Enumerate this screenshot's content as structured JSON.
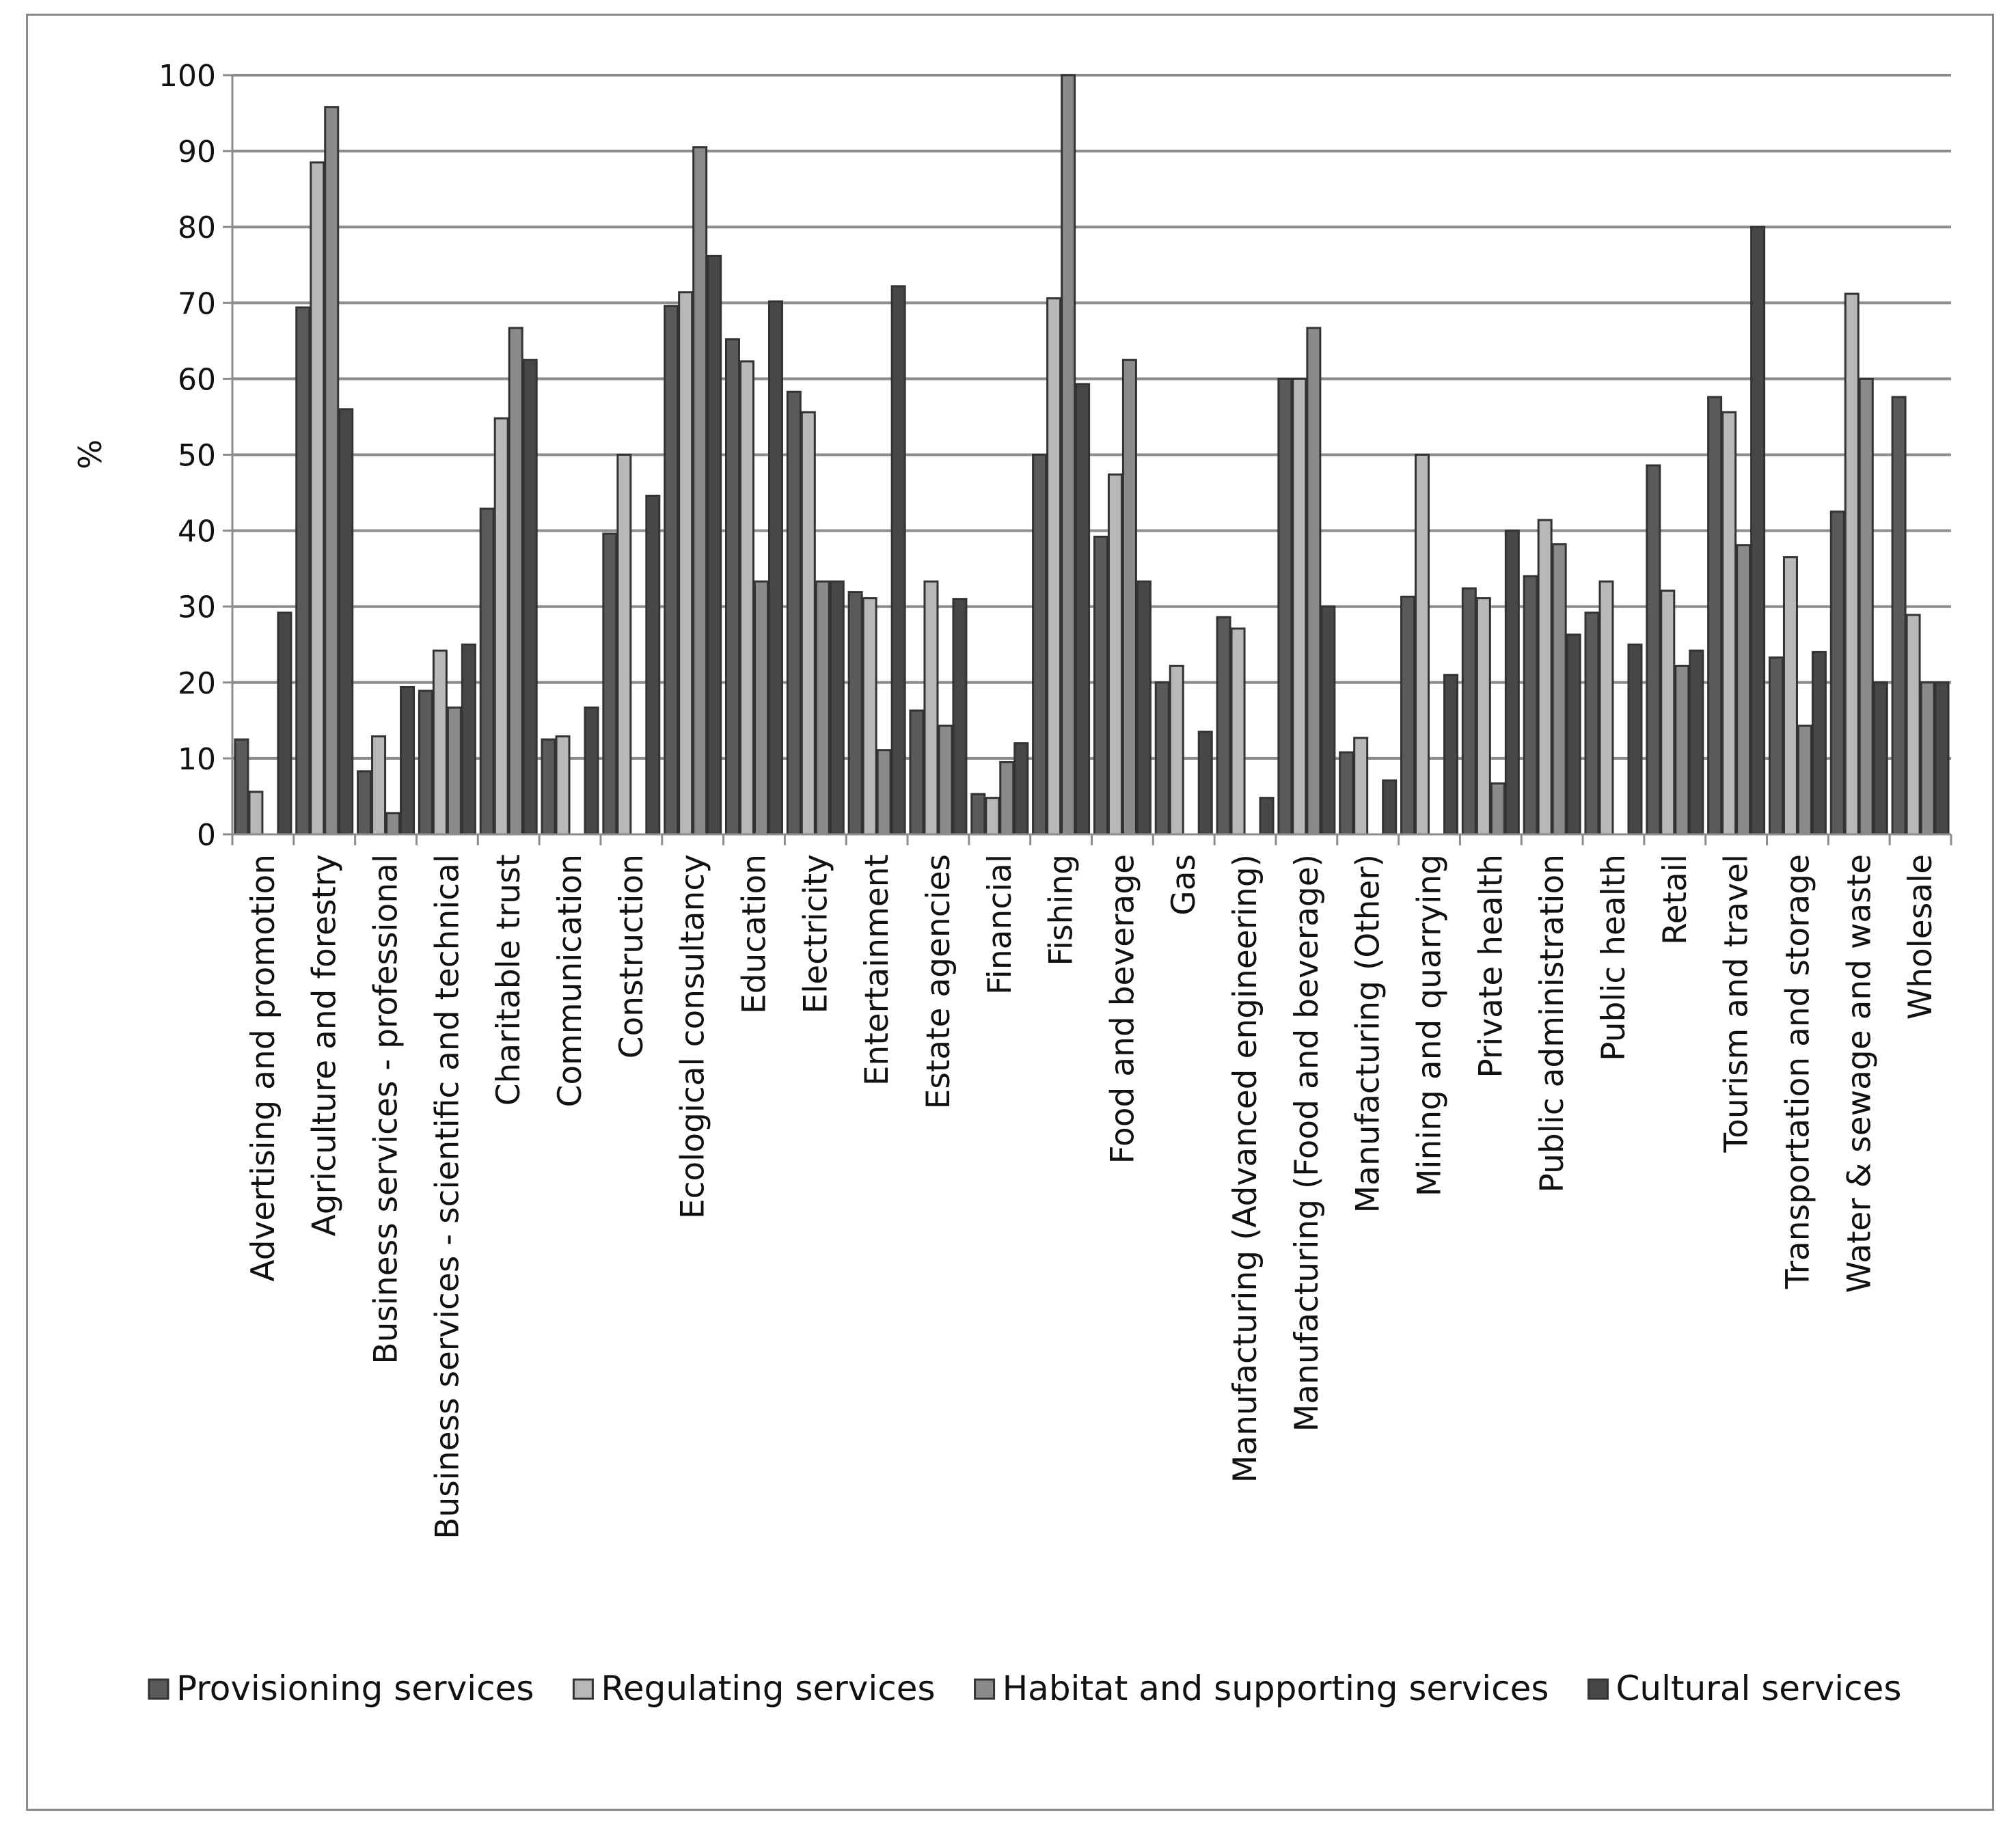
{
  "chart_data": {
    "type": "bar",
    "title": "",
    "xlabel": "",
    "ylabel": "%",
    "ylim": [
      0,
      100
    ],
    "yticks": [
      0,
      10,
      20,
      30,
      40,
      50,
      60,
      70,
      80,
      90,
      100
    ],
    "grid": true,
    "legend_position": "bottom",
    "categories": [
      "Advertising and promotion",
      "Agriculture and forestry",
      "Business services - professional",
      "Business services - scientific and technical",
      "Charitable trust",
      "Communication",
      "Construction",
      "Ecological consultancy",
      "Education",
      "Electricity",
      "Entertainment",
      "Estate agencies",
      "Financial",
      "Fishing",
      "Food and beverage",
      "Gas",
      "Manufacturing (Advanced engineering)",
      "Manufacturing (Food and beverage)",
      "Manufacturing (Other)",
      "Mining and quarrying",
      "Private health",
      "Public administration",
      "Public health",
      "Retail",
      "Tourism and travel",
      "Transportation and storage",
      "Water & sewage and waste",
      "Wholesale"
    ],
    "series": [
      {
        "name": "Provisioning services",
        "color": "#5a5a5a",
        "values": [
          12.5,
          69.4,
          8.3,
          18.9,
          42.9,
          12.5,
          39.6,
          69.6,
          65.2,
          58.3,
          31.9,
          16.3,
          5.3,
          50,
          39.2,
          20,
          28.6,
          60,
          10.8,
          31.3,
          32.4,
          34,
          29.2,
          48.6,
          57.6,
          23.3,
          42.5,
          57.6
        ]
      },
      {
        "name": "Regulating services",
        "color": "#b8b8b8",
        "values": [
          5.6,
          88.5,
          12.9,
          24.2,
          54.8,
          12.9,
          50,
          71.4,
          62.3,
          55.6,
          31.1,
          33.3,
          4.8,
          70.6,
          47.4,
          22.2,
          27.1,
          60,
          12.7,
          50,
          31.1,
          41.4,
          33.3,
          32.1,
          55.6,
          36.5,
          71.2,
          28.9
        ]
      },
      {
        "name": "Habitat and supporting services",
        "color": "#8a8a8a",
        "values": [
          0,
          95.8,
          2.8,
          16.7,
          66.7,
          0,
          0,
          90.5,
          33.3,
          33.3,
          11.1,
          14.3,
          9.5,
          100,
          62.5,
          0,
          0,
          66.7,
          0,
          0,
          6.7,
          38.2,
          0,
          22.2,
          38.1,
          14.3,
          60,
          20
        ]
      },
      {
        "name": "Cultural services",
        "color": "#474747",
        "values": [
          29.2,
          56,
          19.4,
          25,
          62.5,
          16.7,
          44.6,
          76.2,
          70.2,
          33.3,
          72.2,
          31,
          12,
          59.3,
          33.3,
          13.5,
          4.8,
          30,
          7.1,
          21,
          40,
          26.3,
          25,
          24.2,
          80,
          24,
          20,
          20
        ]
      }
    ]
  }
}
